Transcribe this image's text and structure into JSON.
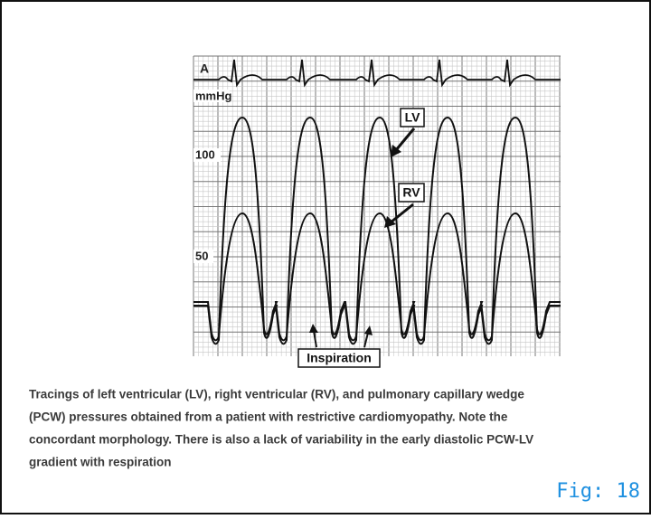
{
  "figure": {
    "trace_label": "A",
    "unit": "mmHg",
    "scale_labels": [
      "100",
      "50"
    ],
    "labels": {
      "lv": "LV",
      "rv": "RV",
      "inspiration": "Inspiration"
    }
  },
  "caption": [
    "Tracings of left ventricular (LV), right ventricular (RV), and pulmonary capillary wedge",
    "(PCW) pressures obtained from a patient with restrictive cardiomyopathy. Note the",
    "concordant morphology. There is also a lack of variability in the early diastolic PCW-LV",
    "gradient with respiration"
  ],
  "figure_number": "Fig: 18"
}
